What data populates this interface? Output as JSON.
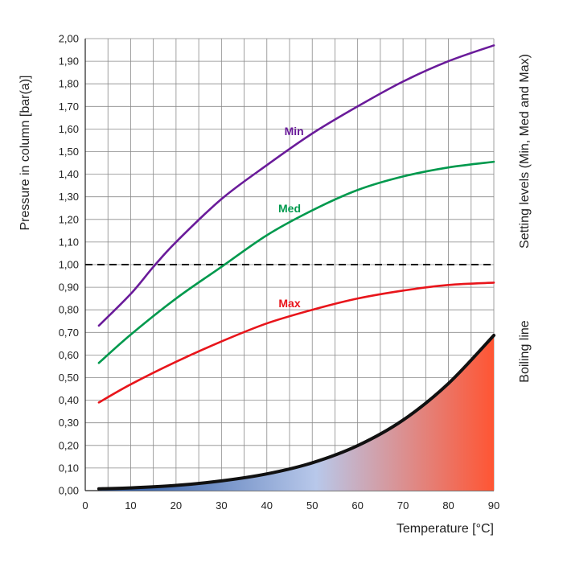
{
  "chart_data": {
    "type": "line",
    "xlabel": "Temperature [°C]",
    "ylabel": "Pressure in column [bar(a)]",
    "right_label_top": "Setting levels (Min, Med and Max)",
    "right_label_bottom": "Boiling line",
    "xlim": [
      0,
      90
    ],
    "ylim": [
      0,
      2
    ],
    "x_ticks": [
      "0",
      "10",
      "20",
      "30",
      "40",
      "50",
      "60",
      "70",
      "80",
      "90"
    ],
    "y_ticks": [
      "0,00",
      "0,10",
      "0,20",
      "0,30",
      "0,40",
      "0,50",
      "0,60",
      "0,70",
      "0,80",
      "0,90",
      "1,00",
      "1,10",
      "1,20",
      "1,30",
      "1,40",
      "1,50",
      "1,60",
      "1,70",
      "1,80",
      "1,90",
      "2,00"
    ],
    "grid": true,
    "reference_line": {
      "y": 1.0,
      "style": "dashed",
      "color": "#111111"
    },
    "series": [
      {
        "name": "Min",
        "color": "#6a1b9a",
        "label_at": [
          46,
          1.59
        ],
        "points": [
          [
            3,
            0.73
          ],
          [
            10,
            0.87
          ],
          [
            15,
            0.99
          ],
          [
            20,
            1.1
          ],
          [
            30,
            1.29
          ],
          [
            40,
            1.44
          ],
          [
            50,
            1.58
          ],
          [
            60,
            1.7
          ],
          [
            70,
            1.81
          ],
          [
            80,
            1.9
          ],
          [
            90,
            1.97
          ]
        ]
      },
      {
        "name": "Med",
        "color": "#00994d",
        "label_at": [
          45,
          1.25
        ],
        "points": [
          [
            3,
            0.565
          ],
          [
            10,
            0.69
          ],
          [
            20,
            0.85
          ],
          [
            30,
            0.99
          ],
          [
            40,
            1.13
          ],
          [
            50,
            1.24
          ],
          [
            60,
            1.33
          ],
          [
            70,
            1.39
          ],
          [
            80,
            1.43
          ],
          [
            90,
            1.455
          ]
        ]
      },
      {
        "name": "Max",
        "color": "#e8151b",
        "label_at": [
          45,
          0.83
        ],
        "points": [
          [
            3,
            0.39
          ],
          [
            10,
            0.47
          ],
          [
            20,
            0.57
          ],
          [
            30,
            0.66
          ],
          [
            40,
            0.74
          ],
          [
            50,
            0.8
          ],
          [
            60,
            0.85
          ],
          [
            70,
            0.885
          ],
          [
            80,
            0.91
          ],
          [
            90,
            0.92
          ]
        ]
      },
      {
        "name": "Boiling line",
        "color": "#111111",
        "filled": true,
        "fill_gradient": [
          "#1f4e9c",
          "#b8c8ea",
          "#ff5533"
        ],
        "points": [
          [
            3,
            0.008
          ],
          [
            10,
            0.012
          ],
          [
            20,
            0.023
          ],
          [
            30,
            0.043
          ],
          [
            40,
            0.074
          ],
          [
            50,
            0.123
          ],
          [
            60,
            0.199
          ],
          [
            70,
            0.312
          ],
          [
            80,
            0.474
          ],
          [
            90,
            0.687
          ]
        ]
      }
    ]
  }
}
